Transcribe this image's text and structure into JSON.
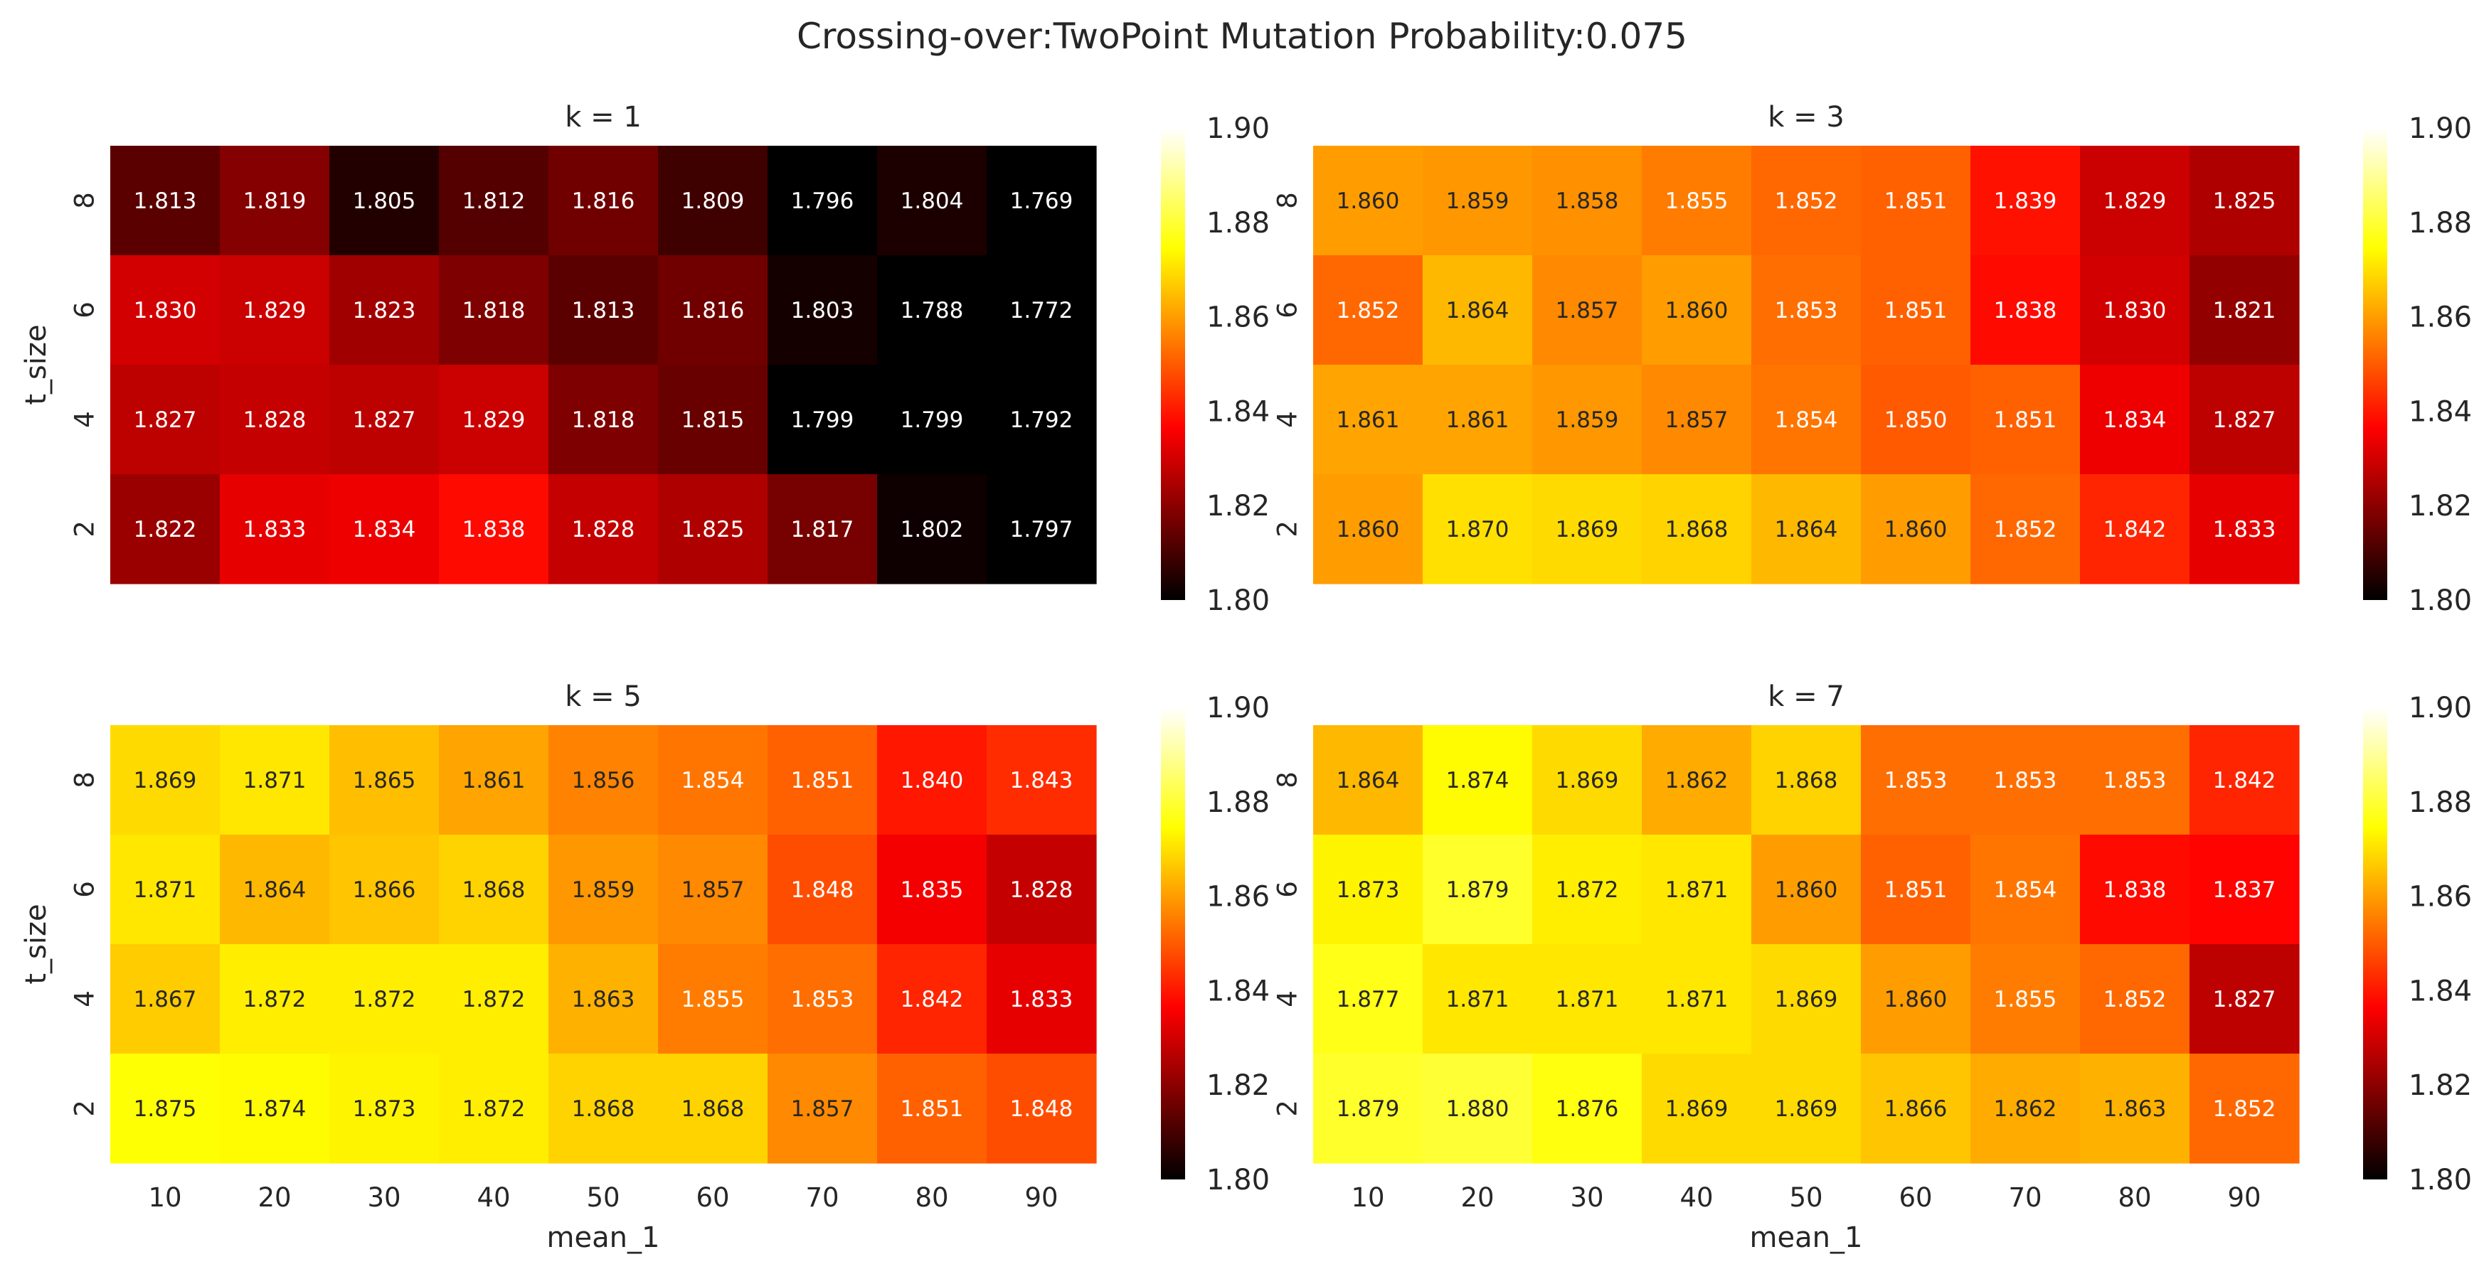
{
  "title": "Crossing-over:TwoPoint Mutation Probability:0.075",
  "colormap": {
    "name": "hot",
    "vmin": 1.8,
    "vmax": 1.9,
    "ticks": [
      "1.80",
      "1.82",
      "1.84",
      "1.86",
      "1.88",
      "1.90"
    ],
    "stops": [
      "#000000",
      "#ff0000",
      "#ffff00",
      "#ffffff"
    ]
  },
  "annotation_colors": {
    "light": "#ffffff",
    "dark": "#262626"
  },
  "chart_data": [
    {
      "type": "heatmap",
      "title": "k = 1",
      "xlabel": "",
      "ylabel": "t_size",
      "x_categories": [
        "10",
        "20",
        "30",
        "40",
        "50",
        "60",
        "70",
        "80",
        "90"
      ],
      "y_categories": [
        "8",
        "6",
        "4",
        "2"
      ],
      "values": [
        [
          1.813,
          1.819,
          1.805,
          1.812,
          1.816,
          1.809,
          1.796,
          1.804,
          1.769
        ],
        [
          1.83,
          1.829,
          1.823,
          1.818,
          1.813,
          1.816,
          1.803,
          1.788,
          1.772
        ],
        [
          1.827,
          1.828,
          1.827,
          1.829,
          1.818,
          1.815,
          1.799,
          1.799,
          1.792
        ],
        [
          1.822,
          1.833,
          1.834,
          1.838,
          1.828,
          1.825,
          1.817,
          1.802,
          1.797
        ]
      ]
    },
    {
      "type": "heatmap",
      "title": "k = 3",
      "xlabel": "",
      "ylabel": "",
      "x_categories": [
        "10",
        "20",
        "30",
        "40",
        "50",
        "60",
        "70",
        "80",
        "90"
      ],
      "y_categories": [
        "8",
        "6",
        "4",
        "2"
      ],
      "values": [
        [
          1.86,
          1.859,
          1.858,
          1.855,
          1.852,
          1.851,
          1.839,
          1.829,
          1.825
        ],
        [
          1.852,
          1.864,
          1.857,
          1.86,
          1.853,
          1.851,
          1.838,
          1.83,
          1.821
        ],
        [
          1.861,
          1.861,
          1.859,
          1.857,
          1.854,
          1.85,
          1.851,
          1.834,
          1.827
        ],
        [
          1.86,
          1.87,
          1.869,
          1.868,
          1.864,
          1.86,
          1.852,
          1.842,
          1.833
        ]
      ]
    },
    {
      "type": "heatmap",
      "title": "k = 5",
      "xlabel": "mean_1",
      "ylabel": "t_size",
      "x_categories": [
        "10",
        "20",
        "30",
        "40",
        "50",
        "60",
        "70",
        "80",
        "90"
      ],
      "y_categories": [
        "8",
        "6",
        "4",
        "2"
      ],
      "values": [
        [
          1.869,
          1.871,
          1.865,
          1.861,
          1.856,
          1.854,
          1.851,
          1.84,
          1.843
        ],
        [
          1.871,
          1.864,
          1.866,
          1.868,
          1.859,
          1.857,
          1.848,
          1.835,
          1.828
        ],
        [
          1.867,
          1.872,
          1.872,
          1.872,
          1.863,
          1.855,
          1.853,
          1.842,
          1.833
        ],
        [
          1.875,
          1.874,
          1.873,
          1.872,
          1.868,
          1.868,
          1.857,
          1.851,
          1.848
        ]
      ]
    },
    {
      "type": "heatmap",
      "title": "k = 7",
      "xlabel": "mean_1",
      "ylabel": "",
      "x_categories": [
        "10",
        "20",
        "30",
        "40",
        "50",
        "60",
        "70",
        "80",
        "90"
      ],
      "y_categories": [
        "8",
        "6",
        "4",
        "2"
      ],
      "values": [
        [
          1.864,
          1.874,
          1.869,
          1.862,
          1.868,
          1.853,
          1.853,
          1.853,
          1.842
        ],
        [
          1.873,
          1.879,
          1.872,
          1.871,
          1.86,
          1.851,
          1.854,
          1.838,
          1.837
        ],
        [
          1.877,
          1.871,
          1.871,
          1.871,
          1.869,
          1.86,
          1.855,
          1.852,
          1.827
        ],
        [
          1.879,
          1.88,
          1.876,
          1.869,
          1.869,
          1.866,
          1.862,
          1.863,
          1.852
        ]
      ]
    }
  ]
}
